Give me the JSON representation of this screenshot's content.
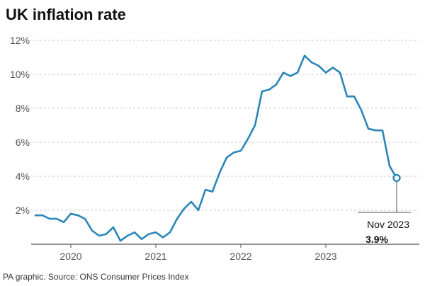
{
  "chart_data": {
    "type": "line",
    "title": "UK inflation rate",
    "source": "PA graphic. Source: ONS Consumer Prices Index",
    "y_unit": "%",
    "ylim": [
      0,
      12
    ],
    "yticks": [
      {
        "value": 2,
        "label": "2%"
      },
      {
        "value": 4,
        "label": "4%"
      },
      {
        "value": 6,
        "label": "6%"
      },
      {
        "value": 8,
        "label": "8%"
      },
      {
        "value": 10,
        "label": "10%"
      },
      {
        "value": 12,
        "label": "12%"
      }
    ],
    "xlim": [
      "2019-08",
      "2023-12"
    ],
    "xticks": [
      {
        "value": "2020-01",
        "label": "2020"
      },
      {
        "value": "2021-01",
        "label": "2021"
      },
      {
        "value": "2022-01",
        "label": "2022"
      },
      {
        "value": "2023-01",
        "label": "2023"
      }
    ],
    "grid": true,
    "line_color": "#2a86b8",
    "series": [
      {
        "x": [
          "2019-08",
          "2019-09",
          "2019-10",
          "2019-11",
          "2019-12",
          "2020-01",
          "2020-02",
          "2020-03",
          "2020-04",
          "2020-05",
          "2020-06",
          "2020-07",
          "2020-08",
          "2020-09",
          "2020-10",
          "2020-11",
          "2020-12",
          "2021-01",
          "2021-02",
          "2021-03",
          "2021-04",
          "2021-05",
          "2021-06",
          "2021-07",
          "2021-08",
          "2021-09",
          "2021-10",
          "2021-11",
          "2021-12",
          "2022-01",
          "2022-02",
          "2022-03",
          "2022-04",
          "2022-05",
          "2022-06",
          "2022-07",
          "2022-08",
          "2022-09",
          "2022-10",
          "2022-11",
          "2022-12",
          "2023-01",
          "2023-02",
          "2023-03",
          "2023-04",
          "2023-05",
          "2023-06",
          "2023-07",
          "2023-08",
          "2023-09",
          "2023-10",
          "2023-11"
        ],
        "values": [
          1.7,
          1.7,
          1.5,
          1.5,
          1.3,
          1.8,
          1.7,
          1.5,
          0.8,
          0.5,
          0.6,
          1.0,
          0.2,
          0.5,
          0.7,
          0.3,
          0.6,
          0.7,
          0.4,
          0.7,
          1.5,
          2.1,
          2.5,
          2.0,
          3.2,
          3.1,
          4.2,
          5.1,
          5.4,
          5.5,
          6.2,
          7.0,
          9.0,
          9.1,
          9.4,
          10.1,
          9.9,
          10.1,
          11.1,
          10.7,
          10.5,
          10.1,
          10.4,
          10.1,
          8.7,
          8.7,
          7.9,
          6.8,
          6.7,
          6.7,
          4.6,
          3.9
        ]
      }
    ],
    "annotation": {
      "x": "2023-11",
      "label": "Nov 2023",
      "value_label": "3.9%"
    }
  }
}
